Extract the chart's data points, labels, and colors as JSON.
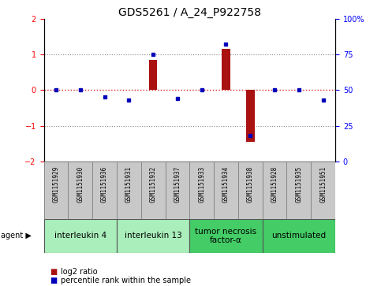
{
  "title": "GDS5261 / A_24_P922758",
  "samples": [
    "GSM1151929",
    "GSM1151930",
    "GSM1151936",
    "GSM1151931",
    "GSM1151932",
    "GSM1151937",
    "GSM1151933",
    "GSM1151934",
    "GSM1151938",
    "GSM1151928",
    "GSM1151935",
    "GSM1151951"
  ],
  "log2_ratio": [
    0.0,
    0.0,
    0.0,
    0.0,
    0.85,
    0.0,
    0.0,
    1.15,
    -1.45,
    0.0,
    0.0,
    0.0
  ],
  "percentile": [
    50,
    50,
    45,
    43,
    75,
    44,
    50,
    82,
    18,
    50,
    50,
    43
  ],
  "ylim": [
    -2,
    2
  ],
  "yticks_left": [
    -2,
    -1,
    0,
    1,
    2
  ],
  "yticks_right": [
    0,
    25,
    50,
    75,
    100
  ],
  "agents": [
    {
      "label": "interleukin 4",
      "start": 0,
      "end": 3,
      "color": "#aaeebb"
    },
    {
      "label": "interleukin 13",
      "start": 3,
      "end": 6,
      "color": "#aaeebb"
    },
    {
      "label": "tumor necrosis\nfactor-α",
      "start": 6,
      "end": 9,
      "color": "#44cc66"
    },
    {
      "label": "unstimulated",
      "start": 9,
      "end": 12,
      "color": "#44cc66"
    }
  ],
  "bar_color": "#aa1111",
  "dot_color": "#0000bb",
  "title_fontsize": 10,
  "tick_fontsize": 7,
  "sample_fontsize": 5.5,
  "agent_label_fontsize": 7.5,
  "legend_fontsize": 7,
  "bg_color": "#c8c8c8",
  "plot_bg": "#ffffff",
  "zero_line_color": "#dd2222",
  "dotted_line_color": "#888888"
}
